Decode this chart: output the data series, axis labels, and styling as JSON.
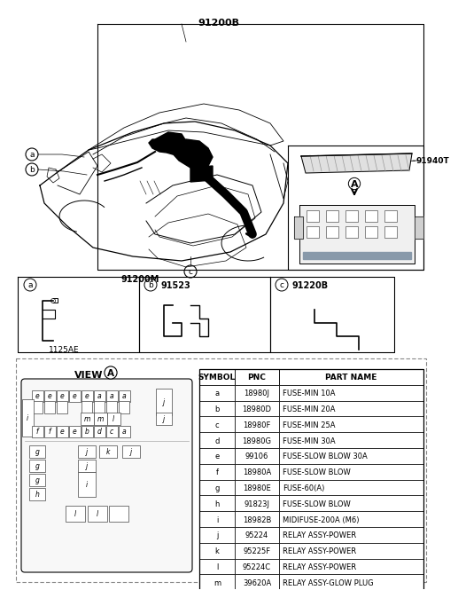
{
  "title": "91200B",
  "bg_color": "#ffffff",
  "labels": {
    "main_part": "91200B",
    "sub_part_m": "91200M",
    "fuse_box": "91940T",
    "parts_a_code": "1125AE",
    "parts_b_code": "91523",
    "parts_c_code": "91220B"
  },
  "table_headers": [
    "SYMBOL",
    "PNC",
    "PART NAME"
  ],
  "table_rows": [
    [
      "a",
      "18980J",
      "FUSE-MIN 10A"
    ],
    [
      "b",
      "18980D",
      "FUSE-MIN 20A"
    ],
    [
      "c",
      "18980F",
      "FUSE-MIN 25A"
    ],
    [
      "d",
      "18980G",
      "FUSE-MIN 30A"
    ],
    [
      "e",
      "99106",
      "FUSE-SLOW BLOW 30A"
    ],
    [
      "f",
      "18980A",
      "FUSE-SLOW BLOW"
    ],
    [
      "g",
      "18980E",
      "FUSE-60(A)"
    ],
    [
      "h",
      "91823J",
      "FUSE-SLOW BLOW"
    ],
    [
      "i",
      "18982B",
      "MIDIFUSE-200A (M6)"
    ],
    [
      "j",
      "95224",
      "RELAY ASSY-POWER"
    ],
    [
      "k",
      "95225F",
      "RELAY ASSY-POWER"
    ],
    [
      "l",
      "95224C",
      "RELAY ASSY-POWER"
    ],
    [
      "m",
      "39620A",
      "RELAY ASSY-GLOW PLUG"
    ]
  ],
  "line_color": "#000000",
  "text_color": "#000000",
  "dashed_color": "#888888"
}
